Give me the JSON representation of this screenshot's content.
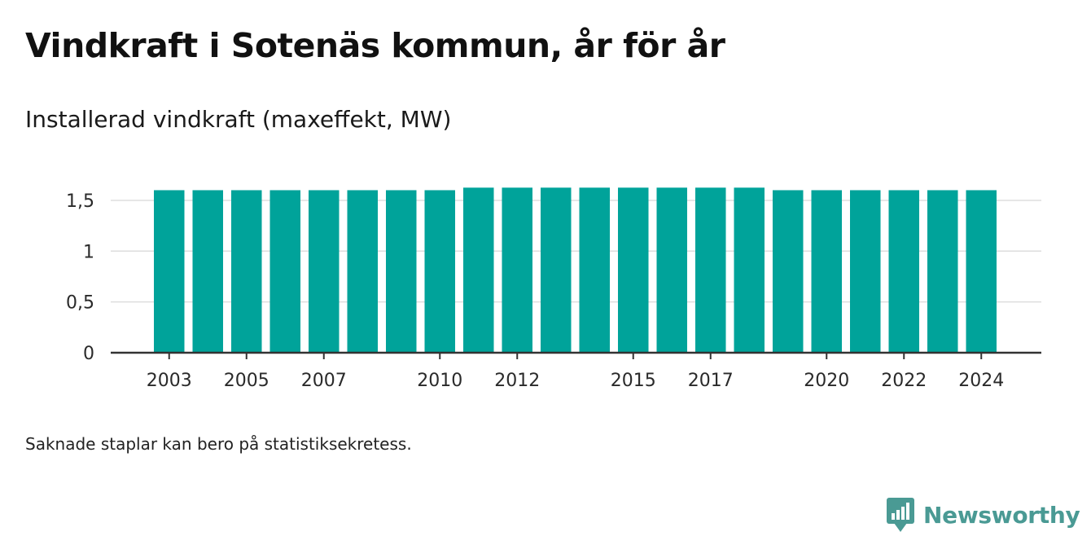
{
  "title": "Vindkraft i Sotenäs kommun, år för år",
  "subtitle": "Installerad vindkraft (maxeffekt, MW)",
  "footnote": "Saknade staplar kan bero på statistiksekretess.",
  "brand": {
    "name": "Newsworthy",
    "icon": "newsworthy-logo-icon",
    "color": "#4a9a94"
  },
  "chart_data": {
    "type": "bar",
    "categories": [
      "2003",
      "2004",
      "2005",
      "2006",
      "2007",
      "2008",
      "2009",
      "2010",
      "2011",
      "2012",
      "2013",
      "2014",
      "2015",
      "2016",
      "2017",
      "2018",
      "2019",
      "2020",
      "2021",
      "2022",
      "2023",
      "2024"
    ],
    "values": [
      1.6,
      1.6,
      1.6,
      1.6,
      1.6,
      1.6,
      1.6,
      1.6,
      1.625,
      1.625,
      1.625,
      1.625,
      1.625,
      1.625,
      1.625,
      1.625,
      1.6,
      1.6,
      1.6,
      1.6,
      1.6,
      1.6
    ],
    "xtick_labels": [
      "2003",
      "2005",
      "2007",
      "2010",
      "2012",
      "2015",
      "2017",
      "2020",
      "2022",
      "2024"
    ],
    "yticks": [
      0,
      0.5,
      1,
      1.5
    ],
    "ytick_labels": [
      "0",
      "0,5",
      "1",
      "1,5"
    ],
    "ylim": [
      0,
      1.7
    ],
    "xlabel": "",
    "ylabel": "",
    "bar_color": "#00a39a",
    "grid": true
  }
}
